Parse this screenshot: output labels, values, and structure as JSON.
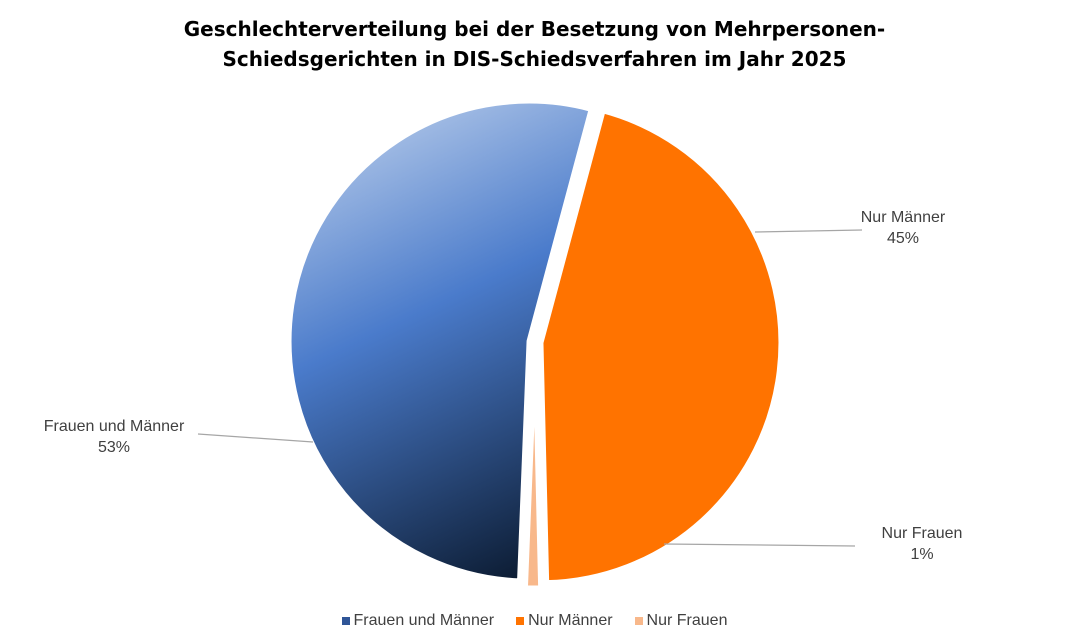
{
  "chart_data": {
    "type": "pie",
    "title_lines": [
      "Geschlechterverteilung bei der Besetzung von Mehrpersonen-",
      "Schiedsgerichten in DIS-Schiedsverfahren im Jahr 2025"
    ],
    "slices": [
      {
        "label": "Nur Männer",
        "value": 45,
        "value_label": "45%",
        "color": "#FF7300"
      },
      {
        "label": "Nur Frauen",
        "value": 1,
        "value_label": "1%",
        "color": "#F8B88B"
      },
      {
        "label": "Frauen und Männer",
        "value": 53,
        "value_label": "53%",
        "color": "#3E69B0"
      }
    ],
    "exploded": true,
    "legend_position": "bottom",
    "legend": [
      "Frauen und Männer",
      "Nur Männer",
      "Nur Frauen"
    ],
    "legend_colors": [
      "#2F5597",
      "#FF7300",
      "#F8B88B"
    ]
  }
}
